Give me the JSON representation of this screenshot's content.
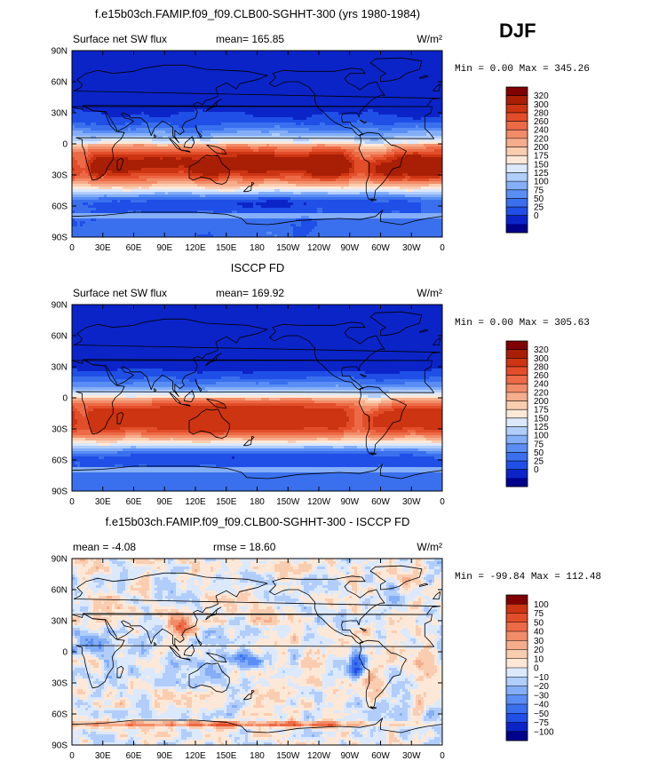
{
  "figure": {
    "season_label": "DJF",
    "colors": {
      "seq": [
        "#00008b",
        "#0b24c8",
        "#1f4fe6",
        "#3a70ee",
        "#5a8ef5",
        "#84aef8",
        "#b1cdfb",
        "#dce9fd",
        "#fde8d8",
        "#fbcdb0",
        "#f6ad8c",
        "#f28c68",
        "#ed6a46",
        "#e34e2a",
        "#cc3412",
        "#a81f05",
        "#800000"
      ],
      "div": [
        "#00008b",
        "#0b24c8",
        "#1f4fe6",
        "#3a70ee",
        "#5a8ef5",
        "#84aef8",
        "#b1cdfb",
        "#dce9fd",
        "#fde8d8",
        "#fbcdb0",
        "#f6ad8c",
        "#f28c68",
        "#ed6a46",
        "#e34e2a",
        "#cc3412",
        "#800000"
      ],
      "land": "#000000"
    }
  },
  "chart_data": [
    {
      "type": "heatmap",
      "title": "f.e15b03ch.FAMIP.f09_f09.CLB00-SGHHT-300 (yrs 1980-1984)",
      "left_text": "Surface net SW flux",
      "center_text": "mean= 165.85",
      "units": "W/m²",
      "minmax_text": "Min =    0.00 Max = 345.26",
      "x_ticks": [
        "0",
        "30E",
        "60E",
        "90E",
        "120E",
        "150E",
        "180",
        "150W",
        "120W",
        "90W",
        "60W",
        "30W",
        "0"
      ],
      "y_ticks": [
        "90N",
        "60N",
        "30N",
        "0",
        "30S",
        "60S",
        "90S"
      ],
      "colorbar_labels": [
        "320",
        "300",
        "280",
        "260",
        "240",
        "220",
        "200",
        "175",
        "150",
        "125",
        "100",
        "75",
        "50",
        "25",
        "0"
      ],
      "palette": "seq",
      "field": "model_sw"
    },
    {
      "type": "heatmap",
      "title": "ISCCP FD",
      "left_text": "Surface net SW flux",
      "center_text": "mean= 169.92",
      "units": "W/m²",
      "minmax_text": "Min =    0.00 Max = 305.63",
      "x_ticks": [
        "0",
        "30E",
        "60E",
        "90E",
        "120E",
        "150E",
        "180",
        "150W",
        "120W",
        "90W",
        "60W",
        "30W",
        "0"
      ],
      "y_ticks": [
        "90N",
        "60N",
        "30N",
        "0",
        "30S",
        "60S",
        "90S"
      ],
      "colorbar_labels": [
        "320",
        "300",
        "280",
        "260",
        "240",
        "220",
        "200",
        "175",
        "150",
        "125",
        "100",
        "75",
        "50",
        "25",
        "0"
      ],
      "palette": "seq",
      "field": "obs_sw"
    },
    {
      "type": "heatmap",
      "title": "f.e15b03ch.FAMIP.f09_f09.CLB00-SGHHT-300 - ISCCP FD",
      "left_text": "mean =   -4.08",
      "center_text": "rmse =  18.60",
      "units": "W/m²",
      "minmax_text": "Min = -99.84 Max = 112.48",
      "x_ticks": [
        "0",
        "30E",
        "60E",
        "90E",
        "120E",
        "150E",
        "180",
        "150W",
        "120W",
        "90W",
        "60W",
        "30W",
        "0"
      ],
      "y_ticks": [
        "90N",
        "60N",
        "30N",
        "0",
        "30S",
        "60S",
        "90S"
      ],
      "colorbar_labels": [
        "100",
        "75",
        "50",
        "40",
        "30",
        "20",
        "10",
        "0",
        "−10",
        "−20",
        "−30",
        "−40",
        "−50",
        "−75",
        "−100"
      ],
      "palette": "div",
      "field": "diff"
    }
  ]
}
